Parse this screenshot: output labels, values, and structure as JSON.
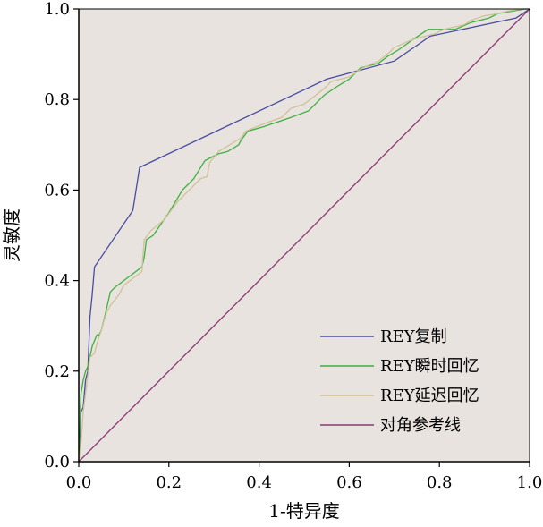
{
  "chart_data": {
    "type": "line",
    "xlabel": "1-特异度",
    "ylabel": "灵敏度",
    "xlim": [
      0,
      1
    ],
    "ylim": [
      0,
      1
    ],
    "xticks": [
      "0.0",
      "0.2",
      "0.4",
      "0.6",
      "0.8",
      "1.0"
    ],
    "yticks": [
      "0.0",
      "0.2",
      "0.4",
      "0.6",
      "0.8",
      "1.0"
    ],
    "grid": false,
    "legend_position": "bottom-right",
    "plot_background": "#e8e3df",
    "series": [
      {
        "name": "REY复制",
        "color": "#4a4ea0",
        "x": [
          0,
          0.005,
          0.01,
          0.015,
          0.02,
          0.025,
          0.03,
          0.035,
          0.12,
          0.135,
          0.55,
          0.7,
          0.78,
          0.97,
          1.0
        ],
        "y": [
          0,
          0.11,
          0.12,
          0.18,
          0.2,
          0.32,
          0.37,
          0.43,
          0.555,
          0.65,
          0.845,
          0.885,
          0.94,
          0.98,
          1.0
        ]
      },
      {
        "name": "REY瞬时回忆",
        "color": "#3fb03f",
        "x": [
          0,
          0.005,
          0.01,
          0.015,
          0.02,
          0.03,
          0.04,
          0.045,
          0.05,
          0.06,
          0.07,
          0.08,
          0.12,
          0.14,
          0.145,
          0.15,
          0.165,
          0.2,
          0.23,
          0.255,
          0.28,
          0.31,
          0.33,
          0.355,
          0.36,
          0.375,
          0.41,
          0.47,
          0.51,
          0.535,
          0.545,
          0.575,
          0.6,
          0.625,
          0.665,
          0.685,
          0.71,
          0.745,
          0.775,
          0.835,
          0.87,
          0.91,
          0.93,
          0.99,
          1.0
        ],
        "y": [
          0,
          0.15,
          0.18,
          0.2,
          0.21,
          0.255,
          0.28,
          0.28,
          0.29,
          0.33,
          0.375,
          0.385,
          0.415,
          0.43,
          0.45,
          0.49,
          0.5,
          0.55,
          0.6,
          0.625,
          0.665,
          0.68,
          0.685,
          0.7,
          0.71,
          0.73,
          0.74,
          0.76,
          0.775,
          0.8,
          0.81,
          0.83,
          0.845,
          0.87,
          0.88,
          0.895,
          0.91,
          0.935,
          0.955,
          0.955,
          0.97,
          0.98,
          0.99,
          1.0,
          1.0
        ]
      },
      {
        "name": "REY延迟回忆",
        "color": "#cfc298",
        "x": [
          0,
          0.005,
          0.01,
          0.02,
          0.025,
          0.035,
          0.04,
          0.05,
          0.06,
          0.07,
          0.09,
          0.1,
          0.14,
          0.145,
          0.16,
          0.19,
          0.22,
          0.25,
          0.27,
          0.285,
          0.29,
          0.31,
          0.36,
          0.37,
          0.42,
          0.45,
          0.47,
          0.5,
          0.52,
          0.545,
          0.56,
          0.6,
          0.63,
          0.665,
          0.69,
          0.7,
          0.735,
          0.75,
          0.79,
          0.81,
          0.855,
          0.87,
          0.9,
          0.93,
          0.95,
          0.98,
          1.0
        ],
        "y": [
          0,
          0.04,
          0.11,
          0.19,
          0.23,
          0.24,
          0.26,
          0.29,
          0.325,
          0.345,
          0.37,
          0.39,
          0.42,
          0.49,
          0.51,
          0.535,
          0.575,
          0.605,
          0.625,
          0.63,
          0.66,
          0.685,
          0.715,
          0.73,
          0.75,
          0.76,
          0.78,
          0.79,
          0.805,
          0.825,
          0.84,
          0.85,
          0.87,
          0.885,
          0.905,
          0.915,
          0.93,
          0.935,
          0.945,
          0.955,
          0.965,
          0.975,
          0.985,
          0.99,
          0.995,
          1.0,
          1.0
        ]
      },
      {
        "name": "对角参考线",
        "color": "#8a3a73",
        "x": [
          0,
          1
        ],
        "y": [
          0,
          1
        ]
      }
    ]
  }
}
